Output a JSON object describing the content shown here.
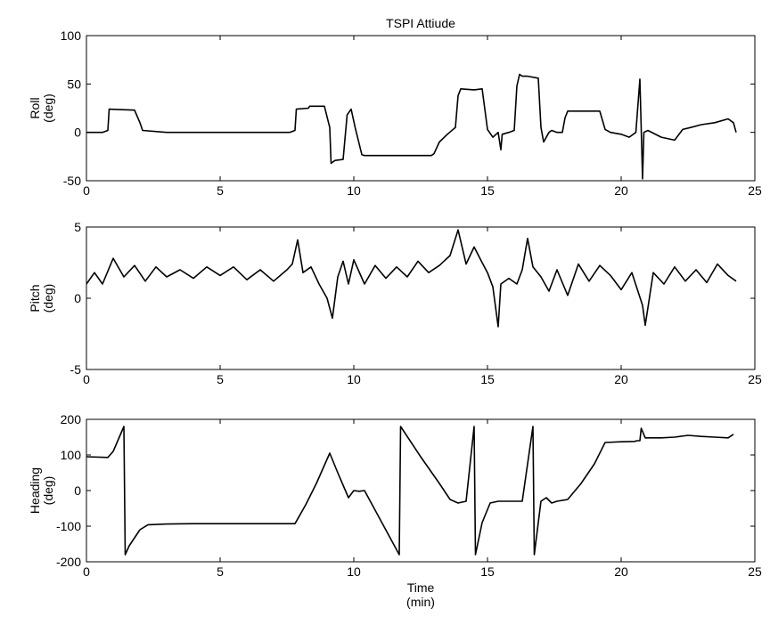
{
  "chart_data": [
    {
      "type": "line",
      "title": "TSPI Attiude",
      "ylabel": [
        "Roll",
        "(deg)"
      ],
      "xlabel": [],
      "xlim": [
        0,
        25
      ],
      "ylim": [
        -50,
        100
      ],
      "xticks": [
        "0",
        "5",
        "10",
        "15",
        "20",
        "25"
      ],
      "yticks": [
        "-50",
        "0",
        "50",
        "100"
      ],
      "x": [
        0,
        0.6,
        0.8,
        0.85,
        1.8,
        2.0,
        2.1,
        3,
        4,
        5,
        6,
        7,
        7.6,
        7.8,
        7.85,
        8.3,
        8.35,
        8.9,
        9.1,
        9.15,
        9.3,
        9.6,
        9.75,
        9.9,
        10.05,
        10.3,
        10.4,
        10.5,
        11,
        12,
        12.9,
        13.0,
        13.2,
        13.5,
        13.8,
        13.9,
        14.0,
        14.5,
        14.8,
        15.0,
        15.2,
        15.4,
        15.5,
        15.55,
        15.8,
        16.0,
        16.1,
        16.2,
        16.3,
        16.5,
        16.9,
        17.0,
        17.1,
        17.3,
        17.4,
        17.6,
        17.8,
        17.9,
        18.0,
        18.5,
        19.2,
        19.4,
        19.6,
        20.0,
        20.3,
        20.55,
        20.7,
        20.8,
        20.85,
        21.0,
        21.5,
        22.0,
        22.3,
        22.6,
        23.0,
        23.5,
        24.0,
        24.2,
        24.3
      ],
      "values": [
        0,
        0,
        2,
        24,
        23,
        10,
        2,
        0,
        0,
        0,
        0,
        0,
        0,
        2,
        24,
        25,
        27,
        27,
        5,
        -32,
        -29,
        -28,
        18,
        24,
        5,
        -23,
        -24,
        -24,
        -24,
        -24,
        -24,
        -22,
        -10,
        -2,
        5,
        38,
        45,
        44,
        45,
        3,
        -5,
        0,
        -18,
        -2,
        0,
        2,
        48,
        60,
        58,
        58,
        56,
        5,
        -10,
        0,
        2,
        0,
        0,
        15,
        22,
        22,
        22,
        3,
        0,
        -2,
        -5,
        0,
        55,
        -48,
        0,
        2,
        -5,
        -8,
        3,
        5,
        8,
        10,
        14,
        10,
        0
      ],
      "grid": false
    },
    {
      "type": "line",
      "title": "",
      "ylabel": [
        "Pitch",
        "(deg)"
      ],
      "xlabel": [],
      "xlim": [
        0,
        25
      ],
      "ylim": [
        -5,
        5
      ],
      "xticks": [
        "0",
        "5",
        "10",
        "15",
        "20",
        "25"
      ],
      "yticks": [
        "-5",
        "0",
        "5"
      ],
      "x": [
        0,
        0.3,
        0.6,
        1.0,
        1.4,
        1.8,
        2.2,
        2.6,
        3.0,
        3.5,
        4.0,
        4.5,
        5.0,
        5.5,
        6.0,
        6.5,
        7.0,
        7.5,
        7.7,
        7.9,
        8.1,
        8.4,
        8.7,
        9.0,
        9.2,
        9.4,
        9.6,
        9.8,
        10.0,
        10.4,
        10.8,
        11.2,
        11.6,
        12.0,
        12.4,
        12.8,
        13.2,
        13.6,
        13.9,
        14.2,
        14.5,
        14.8,
        15.0,
        15.2,
        15.4,
        15.5,
        15.8,
        16.1,
        16.3,
        16.5,
        16.7,
        17.0,
        17.3,
        17.6,
        18.0,
        18.4,
        18.8,
        19.2,
        19.6,
        20.0,
        20.4,
        20.8,
        20.9,
        21.2,
        21.6,
        22.0,
        22.4,
        22.8,
        23.2,
        23.6,
        24.0,
        24.3
      ],
      "values": [
        1,
        1.8,
        1.0,
        2.8,
        1.5,
        2.3,
        1.2,
        2.2,
        1.5,
        2.0,
        1.4,
        2.2,
        1.6,
        2.2,
        1.3,
        2.0,
        1.2,
        2.0,
        2.4,
        4.1,
        1.8,
        2.2,
        1.0,
        0.0,
        -1.4,
        1.5,
        2.6,
        1.0,
        2.7,
        1.0,
        2.3,
        1.4,
        2.2,
        1.5,
        2.6,
        1.8,
        2.3,
        3.0,
        4.8,
        2.4,
        3.6,
        2.5,
        1.8,
        0.8,
        -2.0,
        1.0,
        1.4,
        1.0,
        2.0,
        4.2,
        2.2,
        1.5,
        0.5,
        2.0,
        0.2,
        2.4,
        1.2,
        2.3,
        1.6,
        0.6,
        1.8,
        -0.5,
        -1.9,
        1.8,
        1.0,
        2.2,
        1.2,
        2.0,
        1.1,
        2.4,
        1.6,
        1.2
      ],
      "grid": false
    },
    {
      "type": "line",
      "title": "",
      "ylabel": [
        "Heading",
        "(deg)"
      ],
      "xlabel": [
        "Time",
        "(min)"
      ],
      "xlim": [
        0,
        25
      ],
      "ylim": [
        -200,
        200
      ],
      "xticks": [
        "0",
        "5",
        "10",
        "15",
        "20",
        "25"
      ],
      "yticks": [
        "-200",
        "-100",
        "0",
        "100",
        "200"
      ],
      "x": [
        0,
        0.8,
        1.0,
        1.4,
        1.45,
        1.6,
        2.0,
        2.3,
        3,
        4,
        5,
        6,
        7,
        7.5,
        7.8,
        8.2,
        8.6,
        9.1,
        9.4,
        9.8,
        10.0,
        10.2,
        10.4,
        11.7,
        11.75,
        12.5,
        13.2,
        13.6,
        13.9,
        14.2,
        14.5,
        14.55,
        14.8,
        15.1,
        15.4,
        16.0,
        16.3,
        16.7,
        16.75,
        17.0,
        17.2,
        17.4,
        17.6,
        18.0,
        18.5,
        19.0,
        19.4,
        20.0,
        20.5,
        20.6,
        20.7,
        20.75,
        20.9,
        21.5,
        22.0,
        22.5,
        23.0,
        23.5,
        24.0,
        24.2
      ],
      "values": [
        95,
        93,
        110,
        180,
        -180,
        -155,
        -110,
        -96,
        -94,
        -93,
        -93,
        -93,
        -93,
        -93,
        -93,
        -40,
        20,
        105,
        50,
        -20,
        0,
        -2,
        0,
        -180,
        180,
        95,
        20,
        -25,
        -35,
        -30,
        180,
        -180,
        -90,
        -35,
        -30,
        -30,
        -30,
        180,
        -180,
        -30,
        -20,
        -35,
        -30,
        -25,
        20,
        75,
        135,
        137,
        138,
        140,
        140,
        175,
        148,
        148,
        150,
        155,
        152,
        150,
        148,
        158
      ],
      "grid": false
    }
  ]
}
